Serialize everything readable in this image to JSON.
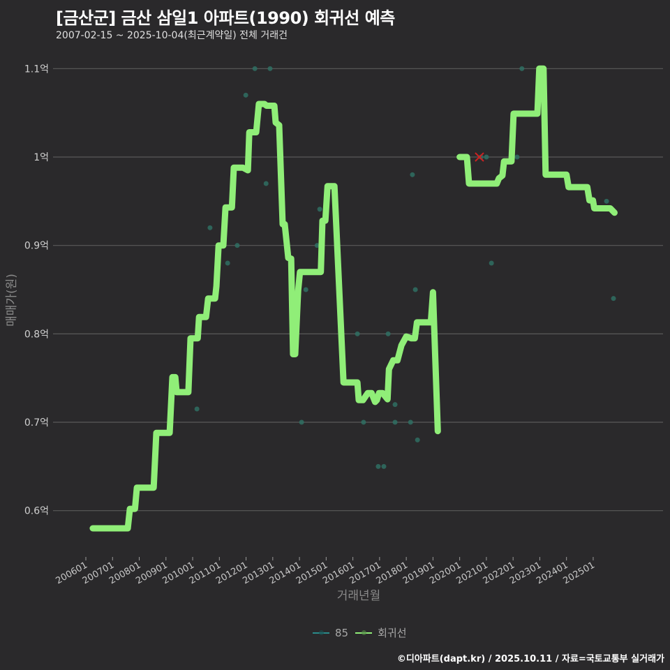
{
  "header": {
    "title": "[금산군] 금산 삼일1 아파트(1990) 회귀선 예측",
    "subtitle": "2007-02-15 ~ 2025-10-04(최근계약일) 전체 거래건"
  },
  "footer": {
    "credit": "©디아파트(dapt.kr) / 2025.10.11 / 자료=국토교통부 실거래가"
  },
  "legend": {
    "items": [
      {
        "label": "85",
        "color": "#2a8b8b"
      },
      {
        "label": "회귀선",
        "color": "#90ee78"
      }
    ]
  },
  "colors": {
    "background": "#2a292b",
    "grid": "#5a5a5a",
    "regression": "#90ee78",
    "scatter": "#2f6f63",
    "marker_x": "#cc2222"
  },
  "chart_data": {
    "type": "line",
    "title": "[금산군] 금산 삼일1 아파트(1990) 회귀선 예측",
    "subtitle": "2007-02-15 ~ 2025-10-04(최근계약일) 전체 거래건",
    "xlabel": "거래년월",
    "ylabel": "매매가(원)",
    "x_ticks": [
      "200601",
      "200701",
      "200801",
      "200901",
      "201001",
      "201101",
      "201201",
      "201301",
      "201401",
      "201501",
      "201601",
      "201701",
      "201801",
      "201901",
      "202001",
      "202101",
      "202201",
      "202301",
      "202401",
      "202501"
    ],
    "y_ticks": [
      {
        "value": 0.6,
        "label": "0.6억"
      },
      {
        "value": 0.7,
        "label": "0.7억"
      },
      {
        "value": 0.8,
        "label": "0.8억"
      },
      {
        "value": 0.9,
        "label": "0.9억"
      },
      {
        "value": 1.0,
        "label": "1억"
      },
      {
        "value": 1.1,
        "label": "1.1억"
      }
    ],
    "ylim": [
      0.56,
      1.12
    ],
    "xlim": [
      2005.9,
      2026.2
    ],
    "grid": true,
    "legend_position": "bottom",
    "series": [
      {
        "name": "회귀선",
        "type": "line",
        "segments": [
          [
            [
              2006.26,
              0.58
            ],
            [
              2007.57,
              0.58
            ],
            [
              2007.65,
              0.602
            ],
            [
              2007.84,
              0.602
            ],
            [
              2007.91,
              0.626
            ],
            [
              2008.54,
              0.626
            ],
            [
              2008.64,
              0.688
            ],
            [
              2009.14,
              0.688
            ],
            [
              2009.24,
              0.751
            ],
            [
              2009.35,
              0.751
            ],
            [
              2009.4,
              0.734
            ],
            [
              2009.84,
              0.734
            ],
            [
              2009.92,
              0.795
            ],
            [
              2010.19,
              0.795
            ],
            [
              2010.24,
              0.819
            ],
            [
              2010.5,
              0.819
            ],
            [
              2010.58,
              0.84
            ],
            [
              2010.84,
              0.84
            ],
            [
              2010.89,
              0.854
            ],
            [
              2010.97,
              0.9
            ],
            [
              2011.15,
              0.9
            ],
            [
              2011.23,
              0.943
            ],
            [
              2011.47,
              0.943
            ],
            [
              2011.54,
              0.988
            ],
            [
              2011.88,
              0.988
            ],
            [
              2012.07,
              0.985
            ],
            [
              2012.12,
              1.028
            ],
            [
              2012.38,
              1.028
            ],
            [
              2012.48,
              1.06
            ],
            [
              2012.69,
              1.06
            ],
            [
              2012.77,
              1.058
            ],
            [
              2013.06,
              1.058
            ],
            [
              2013.11,
              1.039
            ],
            [
              2013.24,
              1.036
            ],
            [
              2013.37,
              0.924
            ],
            [
              2013.45,
              0.924
            ],
            [
              2013.58,
              0.886
            ],
            [
              2013.69,
              0.885
            ],
            [
              2013.76,
              0.777
            ],
            [
              2013.84,
              0.777
            ],
            [
              2013.95,
              0.849
            ],
            [
              2014.02,
              0.87
            ],
            [
              2014.8,
              0.87
            ],
            [
              2014.86,
              0.928
            ],
            [
              2014.97,
              0.928
            ],
            [
              2015.05,
              0.967
            ],
            [
              2015.31,
              0.967
            ],
            [
              2015.46,
              0.87
            ],
            [
              2015.65,
              0.745
            ],
            [
              2016.17,
              0.745
            ],
            [
              2016.22,
              0.725
            ],
            [
              2016.38,
              0.725
            ],
            [
              2016.56,
              0.733
            ],
            [
              2016.7,
              0.733
            ],
            [
              2016.83,
              0.723
            ],
            [
              2016.9,
              0.725
            ],
            [
              2016.98,
              0.733
            ],
            [
              2017.11,
              0.733
            ],
            [
              2017.3,
              0.726
            ],
            [
              2017.35,
              0.76
            ],
            [
              2017.51,
              0.77
            ],
            [
              2017.67,
              0.77
            ],
            [
              2017.82,
              0.787
            ],
            [
              2018.0,
              0.797
            ],
            [
              2018.19,
              0.795
            ],
            [
              2018.32,
              0.795
            ],
            [
              2018.4,
              0.813
            ],
            [
              2018.92,
              0.813
            ],
            [
              2019.0,
              0.847
            ],
            [
              2019.18,
              0.69
            ]
          ],
          [
            [
              2020.0,
              1.0
            ],
            [
              2020.27,
              1.0
            ],
            [
              2020.35,
              0.97
            ],
            [
              2021.39,
              0.97
            ],
            [
              2021.47,
              0.976
            ],
            [
              2021.6,
              0.979
            ],
            [
              2021.66,
              0.995
            ],
            [
              2021.94,
              0.995
            ],
            [
              2022.02,
              1.049
            ],
            [
              2022.91,
              1.049
            ],
            [
              2022.98,
              1.1
            ],
            [
              2023.14,
              1.1
            ],
            [
              2023.22,
              0.98
            ],
            [
              2024.0,
              0.98
            ],
            [
              2024.08,
              0.966
            ],
            [
              2024.78,
              0.966
            ],
            [
              2024.86,
              0.951
            ],
            [
              2024.99,
              0.951
            ],
            [
              2025.04,
              0.942
            ],
            [
              2025.64,
              0.942
            ],
            [
              2025.8,
              0.937
            ]
          ]
        ]
      },
      {
        "name": "85",
        "type": "scatter",
        "points": [
          [
            2010.16,
            0.715
          ],
          [
            2010.65,
            0.92
          ],
          [
            2011.31,
            0.88
          ],
          [
            2011.67,
            0.9
          ],
          [
            2011.99,
            1.07
          ],
          [
            2012.33,
            1.1
          ],
          [
            2012.75,
            0.97
          ],
          [
            2012.9,
            1.1
          ],
          [
            2014.08,
            0.7
          ],
          [
            2014.24,
            0.85
          ],
          [
            2014.66,
            0.9
          ],
          [
            2014.76,
            0.941
          ],
          [
            2016.17,
            0.8
          ],
          [
            2016.4,
            0.7
          ],
          [
            2016.95,
            0.65
          ],
          [
            2017.16,
            0.65
          ],
          [
            2017.32,
            0.8
          ],
          [
            2017.58,
            0.72
          ],
          [
            2017.58,
            0.7
          ],
          [
            2018.16,
            0.7
          ],
          [
            2018.23,
            0.98
          ],
          [
            2018.34,
            0.85
          ],
          [
            2018.42,
            0.68
          ],
          [
            2020.8,
            1.0
          ],
          [
            2021.0,
            1.0
          ],
          [
            2021.19,
            0.88
          ],
          [
            2022.15,
            1.0
          ],
          [
            2022.33,
            1.1
          ],
          [
            2025.5,
            0.95
          ],
          [
            2025.76,
            0.84
          ]
        ]
      }
    ],
    "annotations": [
      {
        "type": "x-marker",
        "x": 2020.74,
        "y": 1.0,
        "color": "#cc2222"
      }
    ]
  }
}
